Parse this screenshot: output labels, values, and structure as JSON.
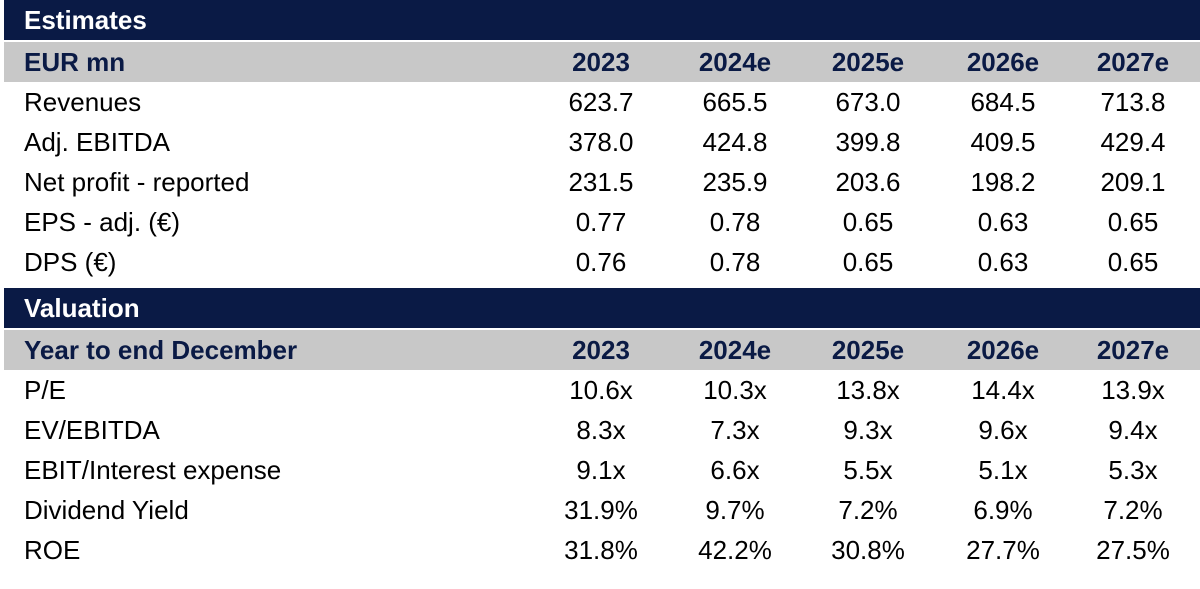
{
  "estimates": {
    "title": "Estimates",
    "header": {
      "label": "EUR mn",
      "years": [
        "2023",
        "2024e",
        "2025e",
        "2026e",
        "2027e"
      ]
    },
    "rows": [
      {
        "label": "Revenues",
        "values": [
          "623.7",
          "665.5",
          "673.0",
          "684.5",
          "713.8"
        ]
      },
      {
        "label": "Adj. EBITDA",
        "values": [
          "378.0",
          "424.8",
          "399.8",
          "409.5",
          "429.4"
        ]
      },
      {
        "label": "Net profit - reported",
        "values": [
          "231.5",
          "235.9",
          "203.6",
          "198.2",
          "209.1"
        ]
      },
      {
        "label": "EPS - adj. (€)",
        "values": [
          "0.77",
          "0.78",
          "0.65",
          "0.63",
          "0.65"
        ]
      },
      {
        "label": "DPS (€)",
        "values": [
          "0.76",
          "0.78",
          "0.65",
          "0.63",
          "0.65"
        ]
      }
    ]
  },
  "valuation": {
    "title": "Valuation",
    "header": {
      "label": "Year to end December",
      "years": [
        "2023",
        "2024e",
        "2025e",
        "2026e",
        "2027e"
      ]
    },
    "rows": [
      {
        "label": "P/E",
        "values": [
          "10.6x",
          "10.3x",
          "13.8x",
          "14.4x",
          "13.9x"
        ]
      },
      {
        "label": "EV/EBITDA",
        "values": [
          "8.3x",
          "7.3x",
          "9.3x",
          "9.6x",
          "9.4x"
        ]
      },
      {
        "label": "EBIT/Interest expense",
        "values": [
          "9.1x",
          "6.6x",
          "5.5x",
          "5.1x",
          "5.3x"
        ]
      },
      {
        "label": "Dividend Yield",
        "values": [
          "31.9%",
          "9.7%",
          "7.2%",
          "6.9%",
          "7.2%"
        ]
      },
      {
        "label": "ROE",
        "values": [
          "31.8%",
          "42.2%",
          "30.8%",
          "27.7%",
          "27.5%"
        ]
      }
    ]
  }
}
